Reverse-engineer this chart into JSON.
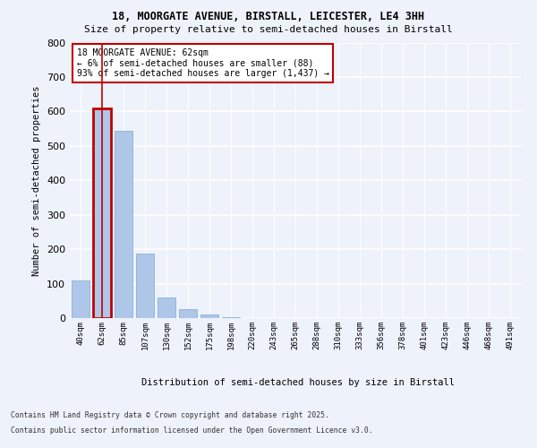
{
  "title1": "18, MOORGATE AVENUE, BIRSTALL, LEICESTER, LE4 3HH",
  "title2": "Size of property relative to semi-detached houses in Birstall",
  "xlabel": "Distribution of semi-detached houses by size in Birstall",
  "ylabel": "Number of semi-detached properties",
  "categories": [
    "40sqm",
    "62sqm",
    "85sqm",
    "107sqm",
    "130sqm",
    "152sqm",
    "175sqm",
    "198sqm",
    "220sqm",
    "243sqm",
    "265sqm",
    "288sqm",
    "310sqm",
    "333sqm",
    "356sqm",
    "378sqm",
    "401sqm",
    "423sqm",
    "446sqm",
    "468sqm",
    "491sqm"
  ],
  "values": [
    108,
    610,
    545,
    188,
    60,
    27,
    10,
    3,
    0,
    0,
    0,
    0,
    0,
    0,
    0,
    0,
    0,
    0,
    0,
    0,
    0
  ],
  "highlight_index": 1,
  "highlight_color": "#c00000",
  "bar_color": "#aec6e8",
  "bar_edge_color": "#7aaad0",
  "annotation_title": "18 MOORGATE AVENUE: 62sqm",
  "annotation_line1": "← 6% of semi-detached houses are smaller (88)",
  "annotation_line2": "93% of semi-detached houses are larger (1,437) →",
  "footer1": "Contains HM Land Registry data © Crown copyright and database right 2025.",
  "footer2": "Contains public sector information licensed under the Open Government Licence v3.0.",
  "ylim": [
    0,
    800
  ],
  "yticks": [
    0,
    100,
    200,
    300,
    400,
    500,
    600,
    700,
    800
  ],
  "bg_color": "#eef2fb",
  "grid_color": "#ffffff"
}
